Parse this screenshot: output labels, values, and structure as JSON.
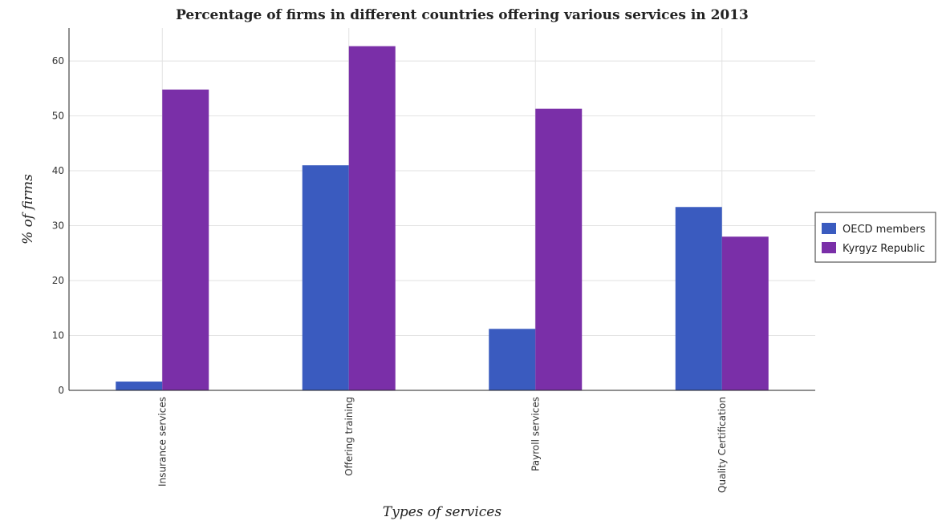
{
  "chart_data": {
    "type": "bar",
    "title": "Percentage of firms in different countries offering various services in 2013",
    "xlabel": "Types of services",
    "ylabel": "% of firms",
    "categories": [
      "Insurance services",
      "Offering training",
      "Payroll services",
      "Quality Certification"
    ],
    "series": [
      {
        "name": "OECD members",
        "color": "#3a5bbf",
        "values": [
          1.6,
          41.0,
          11.2,
          33.4
        ]
      },
      {
        "name": "Kyrgyz Republic",
        "color": "#7a2fa8",
        "values": [
          54.8,
          62.7,
          51.3,
          28.0
        ]
      }
    ],
    "ylim": [
      0,
      66
    ],
    "yticks": [
      0,
      10,
      20,
      30,
      40,
      50,
      60
    ],
    "grid": true,
    "legend_position": "right"
  }
}
